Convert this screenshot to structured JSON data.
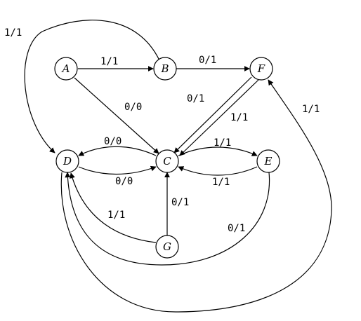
{
  "nodes": {
    "A": "A",
    "B": "B",
    "C": "C",
    "D": "D",
    "E": "E",
    "F": "F",
    "G": "G"
  },
  "edges": [
    {
      "from": "A",
      "to": "B",
      "label": "1/1"
    },
    {
      "from": "B",
      "to": "F",
      "label": "0/1"
    },
    {
      "from": "A",
      "to": "C",
      "label": "0/0"
    },
    {
      "from": "B",
      "to": "D",
      "label": "1/1"
    },
    {
      "from": "F",
      "to": "C",
      "label": "0/1"
    },
    {
      "from": "F",
      "to": "C",
      "label": "1/1"
    },
    {
      "from": "C",
      "to": "D",
      "label": "0/0"
    },
    {
      "from": "D",
      "to": "C",
      "label": "0/0"
    },
    {
      "from": "C",
      "to": "E",
      "label": "1/1"
    },
    {
      "from": "E",
      "to": "C",
      "label": "1/1"
    },
    {
      "from": "G",
      "to": "C",
      "label": "0/1"
    },
    {
      "from": "G",
      "to": "D",
      "label": "1/1"
    },
    {
      "from": "E",
      "to": "D",
      "label": "0/1"
    },
    {
      "from": "D",
      "to": "F",
      "label": "1/1"
    }
  ]
}
